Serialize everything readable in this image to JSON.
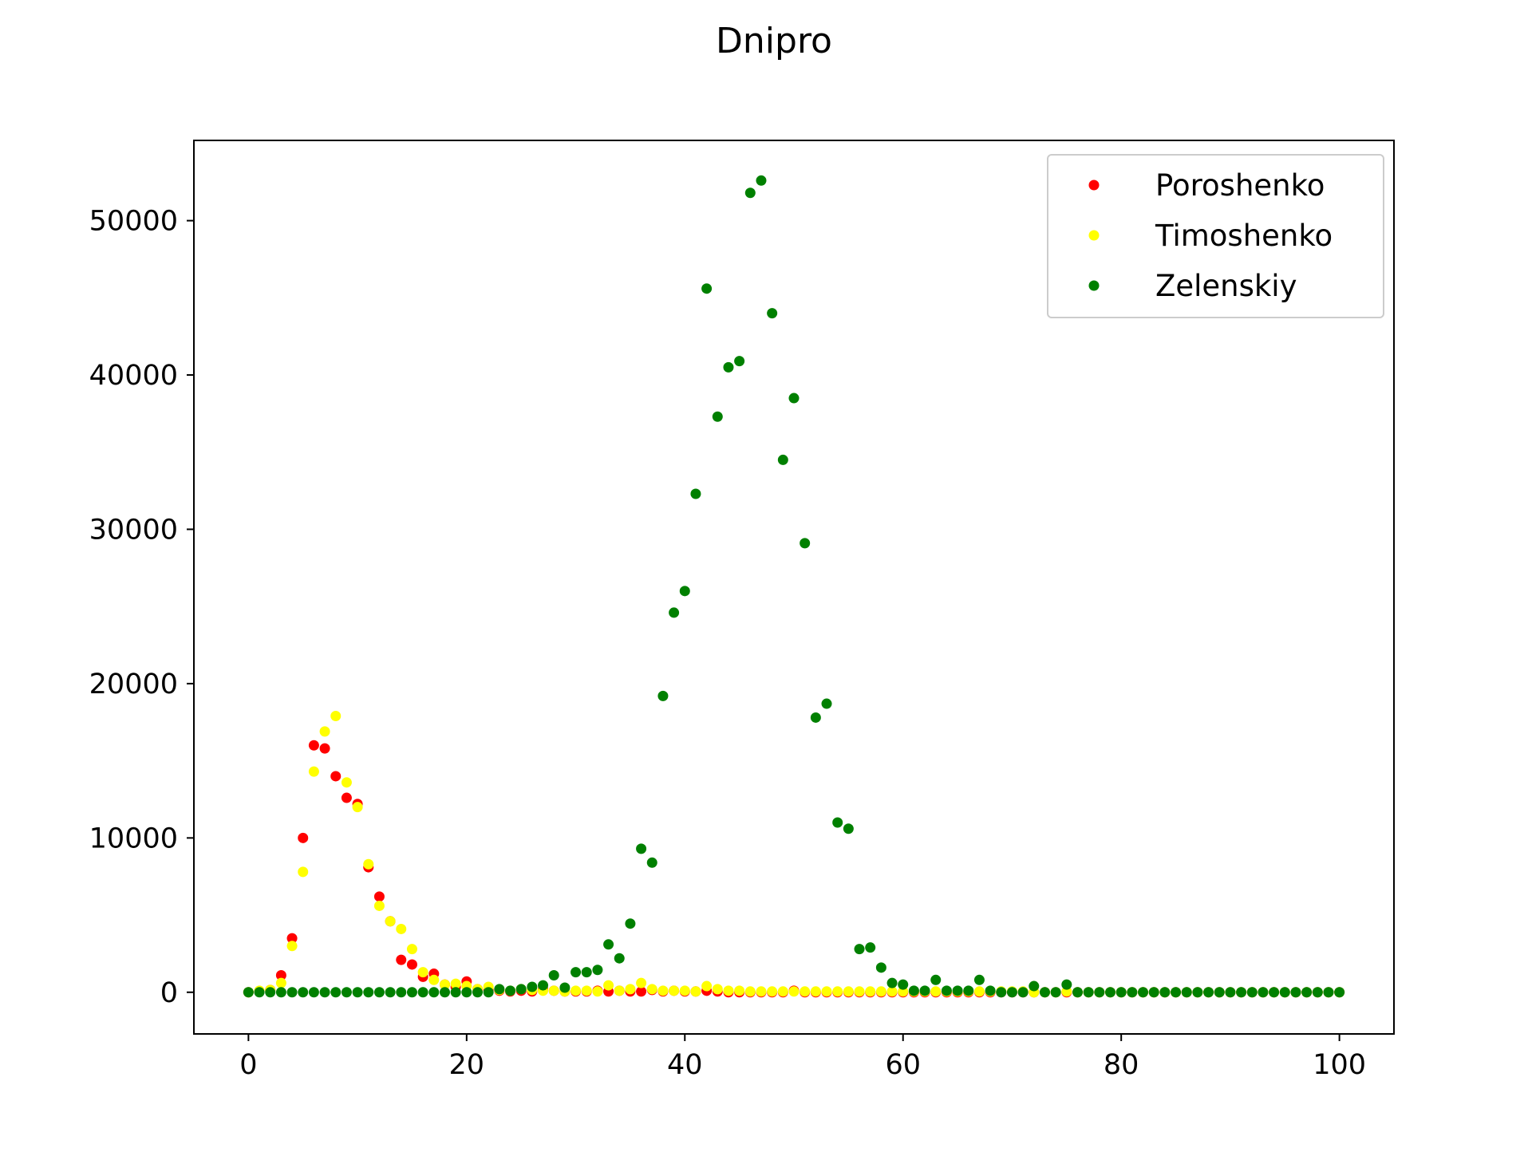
{
  "chart_data": {
    "type": "scatter",
    "title": "Dnipro",
    "xlabel": "",
    "ylabel": "",
    "xlim": [
      -5,
      105
    ],
    "ylim": [
      -2700,
      55200
    ],
    "xticks": [
      0,
      20,
      40,
      60,
      80,
      100
    ],
    "yticks": [
      0,
      10000,
      20000,
      30000,
      40000,
      50000
    ],
    "grid": false,
    "legend_position": "top-right",
    "series": [
      {
        "name": "Poroshenko",
        "color": "#ff0000",
        "x": [
          0,
          1,
          2,
          3,
          4,
          5,
          6,
          7,
          8,
          9,
          10,
          11,
          12,
          13,
          14,
          15,
          16,
          17,
          18,
          19,
          20,
          21,
          22,
          23,
          24,
          25,
          26,
          27,
          28,
          29,
          30,
          31,
          32,
          33,
          34,
          35,
          36,
          37,
          38,
          39,
          40,
          41,
          42,
          43,
          44,
          45,
          46,
          47,
          48,
          49,
          50,
          51,
          52,
          53,
          54,
          55,
          56,
          57,
          58,
          59,
          60,
          61,
          62,
          63,
          64,
          65,
          66,
          67,
          68,
          69,
          70,
          71,
          72,
          73,
          74,
          75,
          76,
          77,
          78,
          79,
          80,
          81,
          82,
          83,
          84,
          85,
          86,
          87,
          88,
          89,
          90,
          91,
          92,
          93,
          94,
          95,
          96,
          97,
          98,
          99,
          100
        ],
        "y": [
          0,
          50,
          150,
          1100,
          3500,
          10000,
          16000,
          15800,
          14000,
          12600,
          12200,
          8100,
          6200,
          4600,
          2100,
          1800,
          1000,
          1200,
          500,
          350,
          700,
          200,
          150,
          100,
          50,
          100,
          50,
          200,
          100,
          50,
          50,
          50,
          100,
          50,
          100,
          50,
          50,
          150,
          50,
          100,
          50,
          50,
          100,
          50,
          0,
          0,
          0,
          0,
          0,
          0,
          100,
          0,
          0,
          0,
          0,
          0,
          0,
          0,
          0,
          0,
          0,
          0,
          0,
          0,
          0,
          0,
          0,
          0,
          0,
          0,
          0,
          0,
          0,
          0,
          0,
          0,
          0,
          0,
          0,
          0,
          0,
          0,
          0,
          0,
          0,
          0,
          0,
          0,
          0,
          0,
          0,
          0,
          0,
          0,
          0,
          0,
          0,
          0,
          0,
          0,
          0
        ]
      },
      {
        "name": "Timoshenko",
        "color": "#ffff00",
        "x": [
          0,
          1,
          2,
          3,
          4,
          5,
          6,
          7,
          8,
          9,
          10,
          11,
          12,
          13,
          14,
          15,
          16,
          17,
          18,
          19,
          20,
          21,
          22,
          23,
          24,
          25,
          26,
          27,
          28,
          29,
          30,
          31,
          32,
          33,
          34,
          35,
          36,
          37,
          38,
          39,
          40,
          41,
          42,
          43,
          44,
          45,
          46,
          47,
          48,
          49,
          50,
          51,
          52,
          53,
          54,
          55,
          56,
          57,
          58,
          59,
          60,
          61,
          62,
          63,
          64,
          65,
          66,
          67,
          68,
          69,
          70,
          71,
          72,
          73,
          74,
          75,
          76,
          77,
          78,
          79,
          80,
          81,
          82,
          83,
          84,
          85,
          86,
          87,
          88,
          89,
          90,
          91,
          92,
          93,
          94,
          95,
          96,
          97,
          98,
          99,
          100
        ],
        "y": [
          0,
          100,
          150,
          600,
          3000,
          7800,
          14300,
          16900,
          17900,
          13600,
          12000,
          8300,
          5600,
          4600,
          4100,
          2800,
          1300,
          800,
          500,
          550,
          400,
          200,
          350,
          150,
          100,
          200,
          150,
          100,
          100,
          50,
          100,
          100,
          50,
          450,
          100,
          200,
          600,
          200,
          100,
          100,
          100,
          50,
          400,
          200,
          100,
          100,
          50,
          50,
          50,
          50,
          50,
          50,
          50,
          50,
          50,
          50,
          50,
          50,
          50,
          50,
          50,
          50,
          50,
          50,
          50,
          50,
          50,
          50,
          50,
          50,
          50,
          50,
          0,
          0,
          0,
          50,
          0,
          0,
          0,
          0,
          0,
          0,
          0,
          0,
          0,
          0,
          0,
          0,
          0,
          0,
          0,
          0,
          0,
          0,
          0,
          0,
          0,
          0,
          0,
          0,
          0
        ]
      },
      {
        "name": "Zelenskiy",
        "color": "#008000",
        "x": [
          0,
          1,
          2,
          3,
          4,
          5,
          6,
          7,
          8,
          9,
          10,
          11,
          12,
          13,
          14,
          15,
          16,
          17,
          18,
          19,
          20,
          21,
          22,
          23,
          24,
          25,
          26,
          27,
          28,
          29,
          30,
          31,
          32,
          33,
          34,
          35,
          36,
          37,
          38,
          39,
          40,
          41,
          42,
          43,
          44,
          45,
          46,
          47,
          48,
          49,
          50,
          51,
          52,
          53,
          54,
          55,
          56,
          57,
          58,
          59,
          60,
          61,
          62,
          63,
          64,
          65,
          66,
          67,
          68,
          69,
          70,
          71,
          72,
          73,
          74,
          75,
          76,
          77,
          78,
          79,
          80,
          81,
          82,
          83,
          84,
          85,
          86,
          87,
          88,
          89,
          90,
          91,
          92,
          93,
          94,
          95,
          96,
          97,
          98,
          99,
          100
        ],
        "y": [
          0,
          0,
          0,
          0,
          0,
          0,
          0,
          0,
          0,
          0,
          0,
          0,
          0,
          0,
          0,
          0,
          0,
          0,
          0,
          0,
          0,
          0,
          0,
          200,
          100,
          200,
          350,
          450,
          1100,
          300,
          1300,
          1300,
          1450,
          3100,
          2200,
          4450,
          9300,
          8400,
          19200,
          24600,
          26000,
          32300,
          45600,
          37300,
          40500,
          40900,
          51800,
          52600,
          44000,
          34500,
          38500,
          29100,
          17800,
          18700,
          11000,
          10600,
          2800,
          2900,
          1600,
          600,
          500,
          100,
          100,
          800,
          100,
          100,
          100,
          800,
          100,
          0,
          0,
          0,
          400,
          0,
          0,
          500,
          0,
          0,
          0,
          0,
          0,
          0,
          0,
          0,
          0,
          0,
          0,
          0,
          0,
          0,
          0,
          0,
          0,
          0,
          0,
          0,
          0,
          0,
          0,
          0,
          0
        ]
      }
    ]
  }
}
